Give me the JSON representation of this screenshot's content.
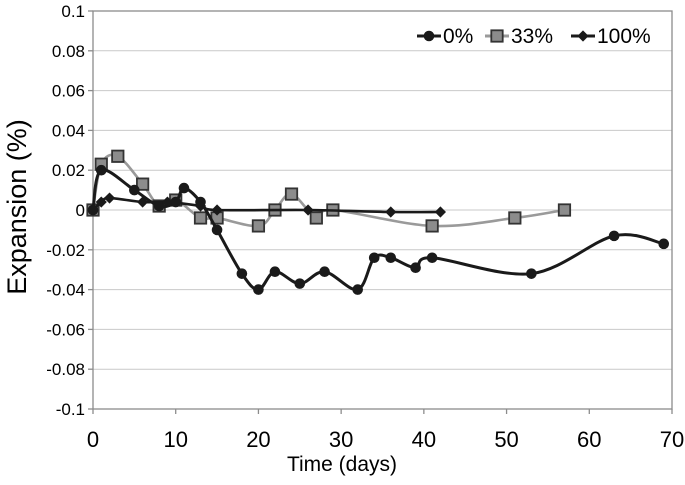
{
  "figure": {
    "background": "#ffffff"
  },
  "chart_data": {
    "type": "line",
    "title": "",
    "xlabel": "Time (days)",
    "ylabel": "Expansion (%)",
    "xlim": [
      0,
      70
    ],
    "ylim": [
      -0.1,
      0.1
    ],
    "grid": "horizontal",
    "legend_position": "top-right-inside",
    "xticks": {
      "values": [
        0,
        10,
        20,
        30,
        40,
        50,
        60,
        70
      ],
      "labels": [
        "0",
        "10",
        "20",
        "30",
        "40",
        "50",
        "60",
        "70"
      ]
    },
    "yticks": {
      "values": [
        0.1,
        0.08,
        0.06,
        0.04,
        0.02,
        0,
        -0.02,
        -0.04,
        -0.06,
        -0.08,
        -0.1
      ],
      "labels": [
        "0.1",
        "0.08",
        "0.06",
        "0.04",
        "0.02",
        "0",
        "-0.02",
        "-0.04",
        "-0.06",
        "-0.08",
        "-0.1"
      ]
    },
    "colors": {
      "gridline": "#c9c9c9",
      "plot_border": "#8c8c8c",
      "tick": "#8c8c8c",
      "text": "#000000"
    },
    "series": [
      {
        "name": "0%",
        "marker": "circle",
        "line_color": "#1a1a1a",
        "marker_fill": "#1a1a1a",
        "marker_stroke": "#1a1a1a",
        "smoothed": true,
        "points": [
          [
            0,
            0
          ],
          [
            1,
            0.02
          ],
          [
            5,
            0.01
          ],
          [
            8,
            0.002
          ],
          [
            10,
            0.004
          ],
          [
            11,
            0.011
          ],
          [
            13,
            0.004
          ],
          [
            15,
            -0.01
          ],
          [
            18,
            -0.032
          ],
          [
            20,
            -0.04
          ],
          [
            22,
            -0.031
          ],
          [
            25,
            -0.037
          ],
          [
            28,
            -0.031
          ],
          [
            32,
            -0.04
          ],
          [
            34,
            -0.024
          ],
          [
            36,
            -0.024
          ],
          [
            39,
            -0.029
          ],
          [
            41,
            -0.024
          ],
          [
            53,
            -0.032
          ],
          [
            63,
            -0.013
          ],
          [
            69,
            -0.017
          ]
        ]
      },
      {
        "name": "33%",
        "marker": "square",
        "line_color": "#9a9a9a",
        "marker_fill": "#8c8c8c",
        "marker_stroke": "#333333",
        "smoothed": true,
        "points": [
          [
            0,
            0
          ],
          [
            1,
            0.023
          ],
          [
            3,
            0.027
          ],
          [
            6,
            0.013
          ],
          [
            8,
            0.002
          ],
          [
            10,
            0.005
          ],
          [
            13,
            -0.004
          ],
          [
            15,
            -0.004
          ],
          [
            20,
            -0.008
          ],
          [
            22,
            0
          ],
          [
            24,
            0.008
          ],
          [
            27,
            -0.004
          ],
          [
            29,
            0
          ],
          [
            41,
            -0.008
          ],
          [
            51,
            -0.004
          ],
          [
            57,
            0
          ]
        ]
      },
      {
        "name": "100%",
        "marker": "diamond",
        "line_color": "#1a1a1a",
        "marker_fill": "#1a1a1a",
        "marker_stroke": "#1a1a1a",
        "smoothed": true,
        "points": [
          [
            0,
            0
          ],
          [
            1,
            0.004
          ],
          [
            2,
            0.006
          ],
          [
            6,
            0.004
          ],
          [
            9,
            0.004
          ],
          [
            13,
            0.002
          ],
          [
            15,
            0
          ],
          [
            26,
            0
          ],
          [
            36,
            -0.001
          ],
          [
            42,
            -0.001
          ]
        ]
      }
    ]
  }
}
